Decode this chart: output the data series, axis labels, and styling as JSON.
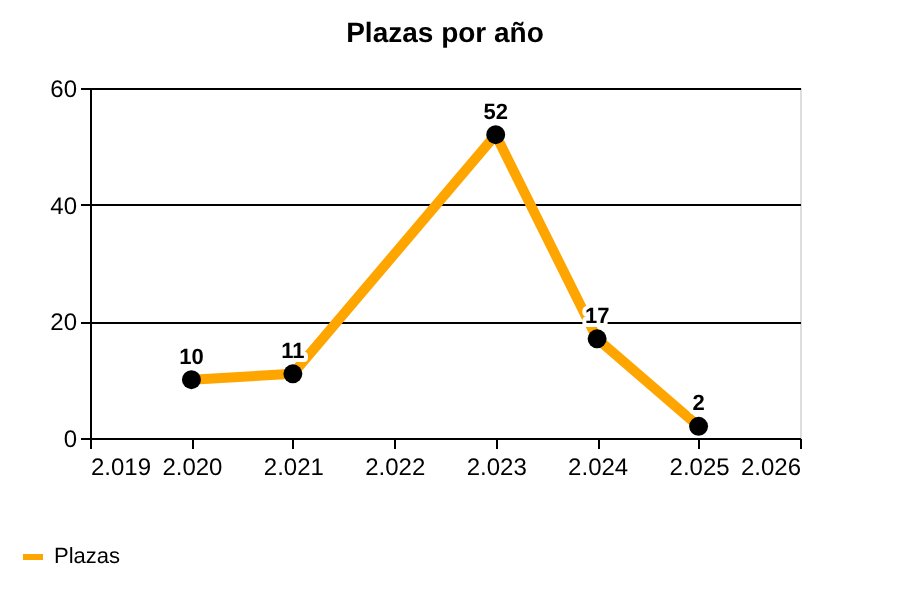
{
  "chart_data": {
    "type": "line",
    "title": "Plazas por año",
    "x": [
      2020,
      2021,
      2023,
      2024,
      2025
    ],
    "series": [
      {
        "name": "Plazas",
        "color": "#ffa500",
        "values": [
          10,
          11,
          52,
          17,
          2
        ]
      }
    ],
    "xlim": [
      2019,
      2026
    ],
    "xticks": [
      {
        "value": 2019,
        "label": "2.019"
      },
      {
        "value": 2020,
        "label": "2.020"
      },
      {
        "value": 2021,
        "label": "2.021"
      },
      {
        "value": 2022,
        "label": "2.022"
      },
      {
        "value": 2023,
        "label": "2.023"
      },
      {
        "value": 2024,
        "label": "2.024"
      },
      {
        "value": 2025,
        "label": "2.025"
      },
      {
        "value": 2026,
        "label": "2.026"
      }
    ],
    "ylim": [
      0,
      60
    ],
    "yticks": [
      0,
      20,
      40,
      60
    ],
    "grid": "y",
    "legend": "bottom left",
    "marker": "circle",
    "line_style": "solid",
    "data_labels": true
  }
}
